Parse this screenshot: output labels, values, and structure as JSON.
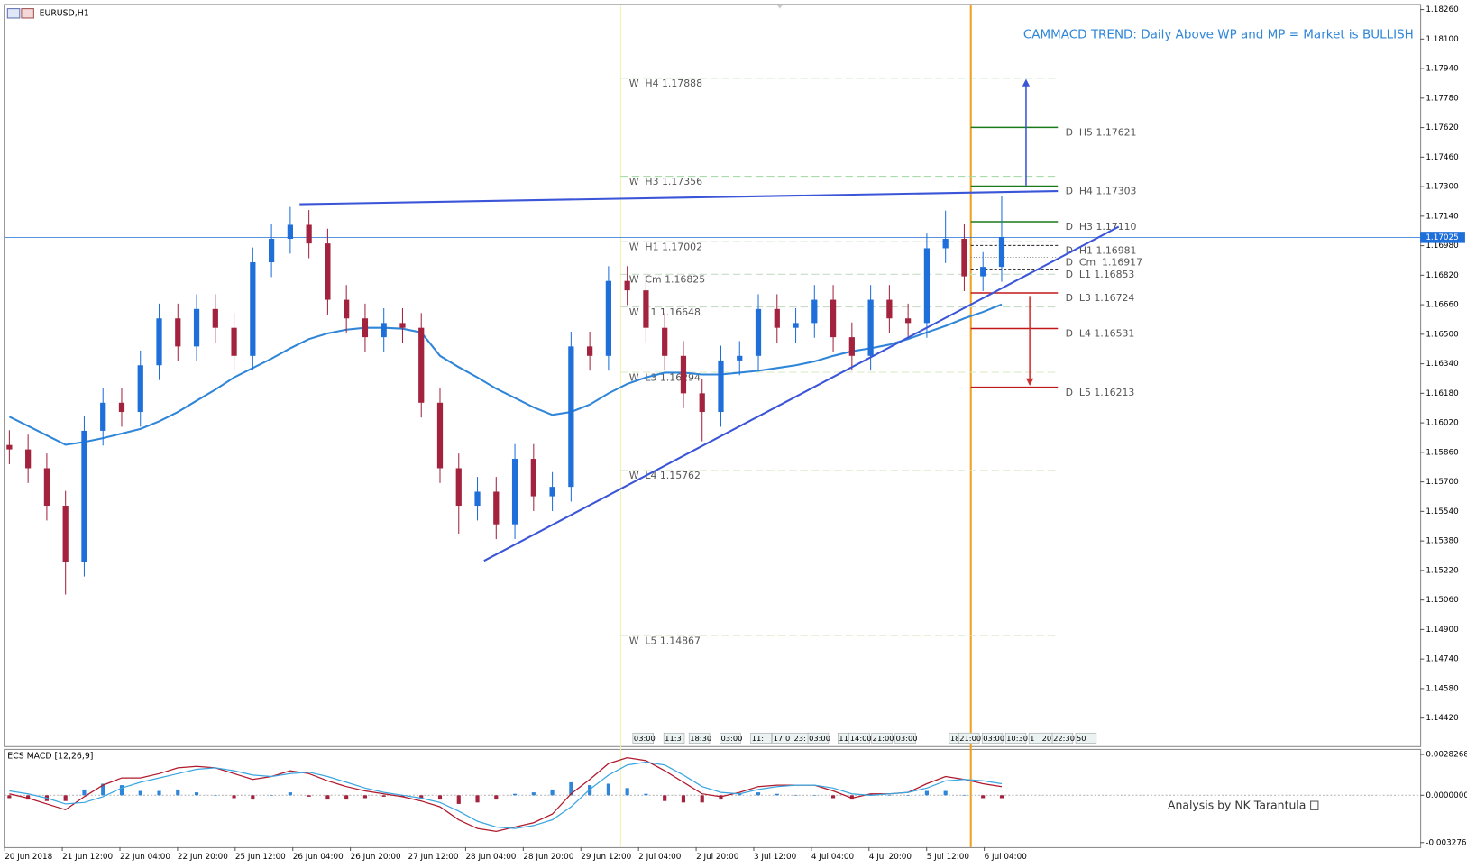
{
  "chart_data": {
    "type": "candlestick",
    "title": "EURUSD,H1",
    "annotation": "CAMMACD TREND: Daily Above WP and MP = Market is BULLISH",
    "footer": "Analysis by NK Tarantula",
    "bull_color": "#1e6fd9",
    "bear_color": "#a3233f",
    "ylim": [
      1.14268,
      1.18285
    ],
    "yticks": [
      {
        "value": 1.1826,
        "label": "1.18260"
      },
      {
        "value": 1.181,
        "label": "1.18100"
      },
      {
        "value": 1.1794,
        "label": "1.17940"
      },
      {
        "value": 1.1778,
        "label": "1.17780"
      },
      {
        "value": 1.1762,
        "label": "1.17620"
      },
      {
        "value": 1.1746,
        "label": "1.17460"
      },
      {
        "value": 1.173,
        "label": "1.17300"
      },
      {
        "value": 1.1714,
        "label": "1.17140"
      },
      {
        "value": 1.1698,
        "label": "1.16980"
      },
      {
        "value": 1.1682,
        "label": "1.16820"
      },
      {
        "value": 1.1666,
        "label": "1.16660"
      },
      {
        "value": 1.165,
        "label": "1.16500"
      },
      {
        "value": 1.1634,
        "label": "1.16340"
      },
      {
        "value": 1.1618,
        "label": "1.16180"
      },
      {
        "value": 1.1602,
        "label": "1.16020"
      },
      {
        "value": 1.1586,
        "label": "1.15860"
      },
      {
        "value": 1.157,
        "label": "1.15700"
      },
      {
        "value": 1.1554,
        "label": "1.15540"
      },
      {
        "value": 1.1538,
        "label": "1.15380"
      },
      {
        "value": 1.1522,
        "label": "1.15220"
      },
      {
        "value": 1.1506,
        "label": "1.15060"
      },
      {
        "value": 1.149,
        "label": "1.14900"
      },
      {
        "value": 1.1474,
        "label": "1.14740"
      },
      {
        "value": 1.1458,
        "label": "1.14580"
      },
      {
        "value": 1.1442,
        "label": "1.14420"
      }
    ],
    "current_price": {
      "value": 1.17025,
      "label": "1.17025",
      "color": "#1e6fd9"
    },
    "x_labels": [
      "20 Jun 2018",
      "21 Jun 12:00",
      "22 Jun 04:00",
      "22 Jun 20:00",
      "25 Jun 12:00",
      "26 Jun 04:00",
      "26 Jun 20:00",
      "27 Jun 12:00",
      "28 Jun 04:00",
      "28 Jun 20:00",
      "29 Jun 12:00",
      "2 Jul 04:00",
      "2 Jul 20:00",
      "3 Jul 12:00",
      "4 Jul 04:00",
      "4 Jul 20:00",
      "5 Jul 12:00",
      "6 Jul 04:00"
    ],
    "session_labels": [
      "03:00",
      "11:3",
      "18:30",
      "03:00",
      "11:",
      "17:0",
      "23:",
      "03:00",
      "11",
      "14:00",
      "21:00",
      "03:00",
      "18",
      "21:00",
      "03:00",
      "10:30",
      "1",
      "20",
      "22:30",
      "50"
    ],
    "candles": [
      [
        1.159,
        1.1598,
        1.15796,
        1.15876
      ],
      [
        1.15876,
        1.15956,
        1.15694,
        1.15774
      ],
      [
        1.15774,
        1.15854,
        1.15491,
        1.15571
      ],
      [
        1.15571,
        1.15651,
        1.1509,
        1.15267
      ],
      [
        1.15267,
        1.16057,
        1.15187,
        1.15977
      ],
      [
        1.15977,
        1.16209,
        1.15897,
        1.16129
      ],
      [
        1.16129,
        1.16209,
        1.15999,
        1.16079
      ],
      [
        1.16079,
        1.16412,
        1.15999,
        1.16332
      ],
      [
        1.16332,
        1.16666,
        1.16252,
        1.16586
      ],
      [
        1.16586,
        1.16666,
        1.16354,
        1.16434
      ],
      [
        1.16434,
        1.16717,
        1.16354,
        1.16637
      ],
      [
        1.16637,
        1.16717,
        1.16455,
        1.16535
      ],
      [
        1.16535,
        1.16615,
        1.16303,
        1.16383
      ],
      [
        1.16383,
        1.1697,
        1.16303,
        1.1689
      ],
      [
        1.1689,
        1.17097,
        1.1681,
        1.17017
      ],
      [
        1.17017,
        1.1719,
        1.16937,
        1.17093
      ],
      [
        1.17093,
        1.17173,
        1.16912,
        1.16992
      ],
      [
        1.16992,
        1.17072,
        1.16607,
        1.16687
      ],
      [
        1.16687,
        1.16767,
        1.16506,
        1.16586
      ],
      [
        1.16586,
        1.16666,
        1.16404,
        1.16484
      ],
      [
        1.16484,
        1.16641,
        1.16404,
        1.16561
      ],
      [
        1.16561,
        1.16641,
        1.16455,
        1.16535
      ],
      [
        1.16535,
        1.16615,
        1.16049,
        1.16129
      ],
      [
        1.16129,
        1.16209,
        1.15694,
        1.15774
      ],
      [
        1.15774,
        1.15854,
        1.1542,
        1.15571
      ],
      [
        1.15571,
        1.15727,
        1.15491,
        1.15647
      ],
      [
        1.15647,
        1.15727,
        1.1539,
        1.1547
      ],
      [
        1.1547,
        1.15905,
        1.1539,
        1.15825
      ],
      [
        1.15825,
        1.15905,
        1.15542,
        1.15622
      ],
      [
        1.15622,
        1.15753,
        1.15542,
        1.15673
      ],
      [
        1.15673,
        1.16514,
        1.15593,
        1.16434
      ],
      [
        1.16434,
        1.16514,
        1.16303,
        1.16383
      ],
      [
        1.16383,
        1.16869,
        1.16303,
        1.16789
      ],
      [
        1.16789,
        1.16869,
        1.16658,
        1.16738
      ],
      [
        1.16738,
        1.16818,
        1.16455,
        1.16535
      ],
      [
        1.16535,
        1.16615,
        1.16303,
        1.16383
      ],
      [
        1.16383,
        1.16463,
        1.161,
        1.1618
      ],
      [
        1.1618,
        1.1626,
        1.1592,
        1.16079
      ],
      [
        1.16079,
        1.16438,
        1.15999,
        1.16358
      ],
      [
        1.16358,
        1.16463,
        1.16278,
        1.16383
      ],
      [
        1.16383,
        1.16717,
        1.16303,
        1.16637
      ],
      [
        1.16637,
        1.16717,
        1.16455,
        1.16535
      ],
      [
        1.16535,
        1.16641,
        1.16455,
        1.16561
      ],
      [
        1.16561,
        1.16767,
        1.16481,
        1.16687
      ],
      [
        1.16687,
        1.16767,
        1.16404,
        1.16484
      ],
      [
        1.16484,
        1.16564,
        1.16303,
        1.16383
      ],
      [
        1.16383,
        1.16767,
        1.16303,
        1.16687
      ],
      [
        1.16687,
        1.16767,
        1.16506,
        1.16586
      ],
      [
        1.16586,
        1.16666,
        1.16481,
        1.16561
      ],
      [
        1.16561,
        1.17046,
        1.16481,
        1.16966
      ],
      [
        1.16966,
        1.1717,
        1.16886,
        1.17017
      ],
      [
        1.17017,
        1.17097,
        1.16734,
        1.16814
      ],
      [
        1.16814,
        1.16945,
        1.16734,
        1.16865
      ],
      [
        1.16865,
        1.1725,
        1.16785,
        1.17025
      ]
    ],
    "moving_average": {
      "color": "#2f86d8",
      "values": [
        1.16053,
        1.16003,
        1.15952,
        1.15901,
        1.15916,
        1.15937,
        1.15962,
        1.15987,
        1.16028,
        1.16079,
        1.1614,
        1.162,
        1.16266,
        1.16317,
        1.16368,
        1.16424,
        1.16474,
        1.16505,
        1.16525,
        1.16535,
        1.16535,
        1.1653,
        1.1651,
        1.16383,
        1.16322,
        1.16266,
        1.16205,
        1.16155,
        1.16104,
        1.16063,
        1.16079,
        1.16119,
        1.1618,
        1.16231,
        1.16266,
        1.16292,
        1.16292,
        1.16282,
        1.16282,
        1.16292,
        1.16302,
        1.16317,
        1.16332,
        1.16353,
        1.16383,
        1.16408,
        1.16424,
        1.16444,
        1.16474,
        1.1651,
        1.16545,
        1.16586,
        1.16621,
        1.16662
      ]
    },
    "levels": [
      {
        "label": "W  H4 1.17888",
        "value": 1.17888,
        "color": "#9fd89f",
        "style": "dashed",
        "period": "weekly"
      },
      {
        "label": "W  H3 1.17356",
        "value": 1.17356,
        "color": "#9fd89f",
        "style": "dashed",
        "period": "weekly"
      },
      {
        "label": "W  H1 1.17002",
        "value": 1.17002,
        "color": "#c8dcc8",
        "style": "dashed",
        "period": "weekly"
      },
      {
        "label": "W  Cm 1.16825",
        "value": 1.16825,
        "color": "#c8dcc8",
        "style": "dashed",
        "period": "weekly"
      },
      {
        "label": "W  L1 1.16648",
        "value": 1.16648,
        "color": "#c8dcc8",
        "style": "dashed",
        "period": "weekly"
      },
      {
        "label": "W  L3 1.16294",
        "value": 1.16294,
        "color": "#d8e8c0",
        "style": "dashed",
        "period": "weekly"
      },
      {
        "label": "W  L4 1.15762",
        "value": 1.15762,
        "color": "#d8e8c0",
        "style": "dashed",
        "period": "weekly"
      },
      {
        "label": "W  L5 1.14867",
        "value": 1.14867,
        "color": "#d8e8c0",
        "style": "dashed",
        "period": "weekly"
      },
      {
        "label": "D  H5 1.17621",
        "value": 1.17621,
        "color": "#1a7a1a",
        "style": "solid",
        "period": "daily"
      },
      {
        "label": "D  H4 1.17303",
        "value": 1.17303,
        "color": "#1a7a1a",
        "style": "solid",
        "period": "daily"
      },
      {
        "label": "D  H3 1.17110",
        "value": 1.1711,
        "color": "#1a7a1a",
        "style": "solid",
        "period": "daily"
      },
      {
        "label": "D  H1 1.16981",
        "value": 1.16981,
        "color": "#222222",
        "style": "dashed",
        "period": "daily"
      },
      {
        "label": "D  Cm  1.16917",
        "value": 1.16917,
        "color": "#888888",
        "style": "dotted",
        "period": "daily"
      },
      {
        "label": "D  L1 1.16853",
        "value": 1.16853,
        "color": "#222222",
        "style": "dashed",
        "period": "daily"
      },
      {
        "label": "D  L3 1.16724",
        "value": 1.16724,
        "color": "#c01818",
        "style": "solid",
        "period": "daily"
      },
      {
        "label": "D  L4 1.16531",
        "value": 1.16531,
        "color": "#c01818",
        "style": "solid",
        "period": "daily"
      },
      {
        "label": "D  L5 1.16213",
        "value": 1.16213,
        "color": "#c01818",
        "style": "solid",
        "period": "daily"
      }
    ],
    "macd": {
      "title": "ECS MACD [12,26,9]",
      "ylim": [
        -0.0035979,
        0.003148
      ],
      "yticks": [
        0.0028268,
        {
          "value": 0,
          "label": "0.0000000"
        },
        -0.0032766
      ],
      "macd": {
        "color": "#b0182c",
        "values": [
          0.0001,
          -0.0002,
          -0.0006,
          -0.001,
          -0.0001,
          0.0007,
          0.0012,
          0.0012,
          0.0015,
          0.0019,
          0.002,
          0.0019,
          0.0015,
          0.0011,
          0.0013,
          0.0017,
          0.0015,
          0.001,
          0.0006,
          0.0003,
          0.0001,
          -0.0001,
          -0.0004,
          -0.0008,
          -0.0017,
          -0.0023,
          -0.0025,
          -0.0022,
          -0.0019,
          -0.0013,
          0.0001,
          0.0011,
          0.0022,
          0.0026,
          0.0024,
          0.0017,
          0.0009,
          0.0001,
          -0.0001,
          0.0002,
          0.0006,
          0.0007,
          0.0007,
          0.0007,
          0.0003,
          -0.0002,
          0.0001,
          0.0001,
          0.0002,
          0.0008,
          0.0013,
          0.0011,
          0.0008,
          0.0006
        ]
      },
      "signal": {
        "color": "#3aa6e0",
        "values": [
          0.0003,
          0.0001,
          -0.0002,
          -0.0006,
          -0.0005,
          -0.0001,
          0.0005,
          0.0009,
          0.0012,
          0.0015,
          0.0018,
          0.0019,
          0.0017,
          0.0014,
          0.0013,
          0.0015,
          0.0016,
          0.0013,
          0.0009,
          0.0005,
          0.0002,
          0,
          -0.0002,
          -0.0005,
          -0.0011,
          -0.0018,
          -0.0022,
          -0.0023,
          -0.0021,
          -0.0017,
          -0.0008,
          0.0004,
          0.0014,
          0.0021,
          0.0023,
          0.0021,
          0.0014,
          0.0006,
          0.0002,
          0.0001,
          0.0004,
          0.0006,
          0.0007,
          0.0007,
          0.0005,
          0.0001,
          0,
          0.0001,
          0.0002,
          0.0005,
          0.001,
          0.0011,
          0.001,
          0.0008
        ]
      },
      "histogram": {
        "positive_color": "#2f86d8",
        "negative_color": "#a3233f",
        "values": [
          -0.0002,
          -0.0003,
          -0.0004,
          -0.0004,
          0.0004,
          0.0008,
          0.0007,
          0.0003,
          0.0003,
          0.0004,
          0.0002,
          0,
          -0.0002,
          -0.0003,
          0,
          0.0002,
          -0.0001,
          -0.0003,
          -0.0003,
          -0.0002,
          -0.0001,
          -0.0001,
          -0.0002,
          -0.0003,
          -0.0006,
          -0.0005,
          -0.0003,
          0.0001,
          0.0002,
          0.0004,
          0.0009,
          0.0007,
          0.0008,
          0.0005,
          0.0001,
          -0.0004,
          -0.0005,
          -0.0005,
          -0.0003,
          0.0001,
          0.0002,
          0.0001,
          0,
          0,
          -0.0002,
          -0.0003,
          0.0001,
          0,
          0,
          0.0003,
          0.0003,
          0,
          -0.0002,
          -0.0002
        ]
      }
    }
  }
}
